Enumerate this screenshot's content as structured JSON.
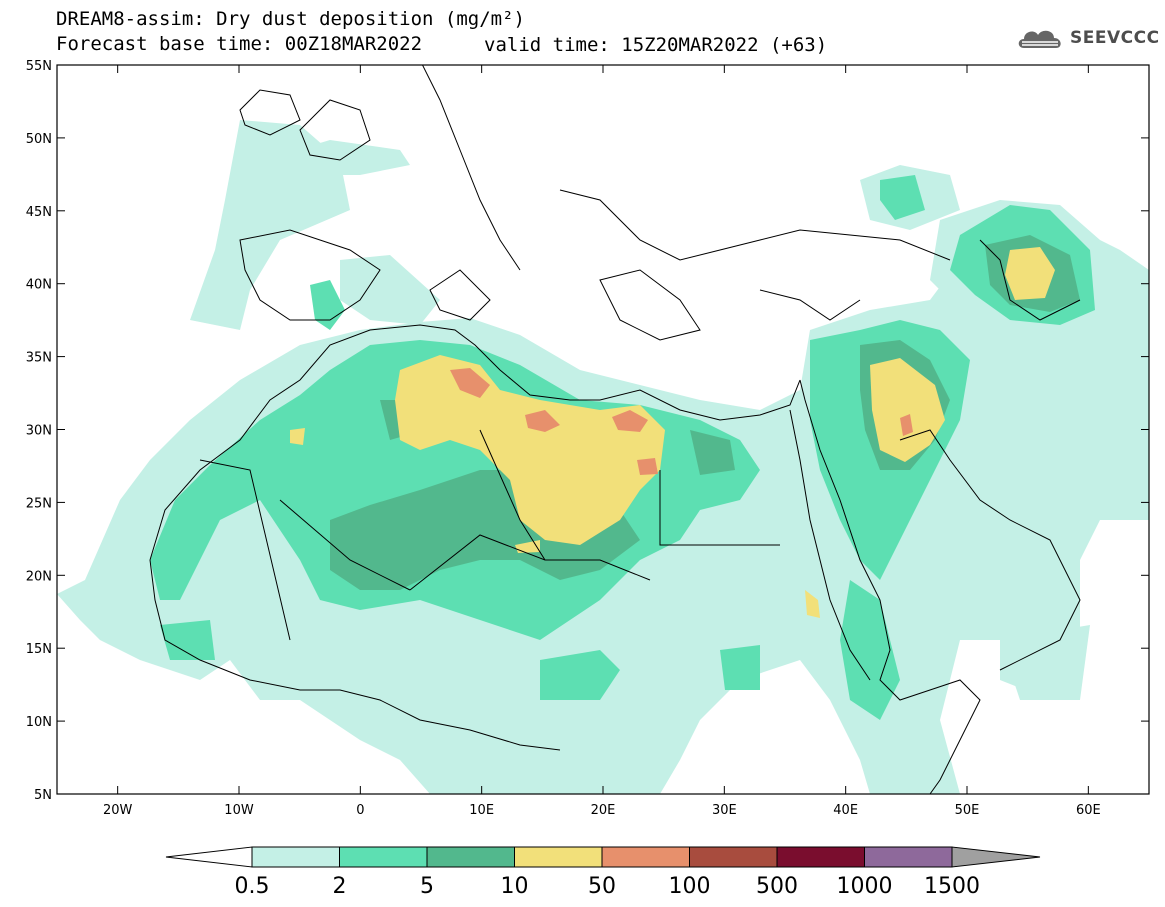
{
  "header": {
    "title_line1": "DREAM8-assim: Dry dust deposition (mg/m²)",
    "title_line2": "Forecast base time: 00Z18MAR2022",
    "valid_time": "valid time: 15Z20MAR2022 (+63)",
    "logo_text": "SEEVCCC",
    "logo_icon": "cloud-icon"
  },
  "map": {
    "lat_ticks": [
      {
        "value": 55,
        "label": "55N"
      },
      {
        "value": 50,
        "label": "50N"
      },
      {
        "value": 45,
        "label": "45N"
      },
      {
        "value": 40,
        "label": "40N"
      },
      {
        "value": 35,
        "label": "35N"
      },
      {
        "value": 30,
        "label": "30N"
      },
      {
        "value": 25,
        "label": "25N"
      },
      {
        "value": 20,
        "label": "20N"
      },
      {
        "value": 15,
        "label": "15N"
      },
      {
        "value": 10,
        "label": "10N"
      },
      {
        "value": 5,
        "label": "5N"
      }
    ],
    "lon_ticks": [
      {
        "value": -20,
        "label": "20W"
      },
      {
        "value": -10,
        "label": "10W"
      },
      {
        "value": 0,
        "label": "0"
      },
      {
        "value": 10,
        "label": "10E"
      },
      {
        "value": 20,
        "label": "20E"
      },
      {
        "value": 30,
        "label": "30E"
      },
      {
        "value": 40,
        "label": "40E"
      },
      {
        "value": 50,
        "label": "50E"
      },
      {
        "value": 60,
        "label": "60E"
      }
    ],
    "lon_range": [
      -25,
      65
    ],
    "lat_range": [
      5,
      55
    ]
  },
  "colorbar": {
    "labels": [
      "0.5",
      "2",
      "5",
      "10",
      "50",
      "100",
      "500",
      "1000",
      "1500"
    ],
    "colors": [
      "#c4f0e6",
      "#5ddfb2",
      "#52b88d",
      "#f2e07a",
      "#e7906c",
      "#a84c3e",
      "#7a0d2e",
      "#8e699b"
    ],
    "under_color": "#ffffff",
    "over_color": "#a0a0a0"
  }
}
